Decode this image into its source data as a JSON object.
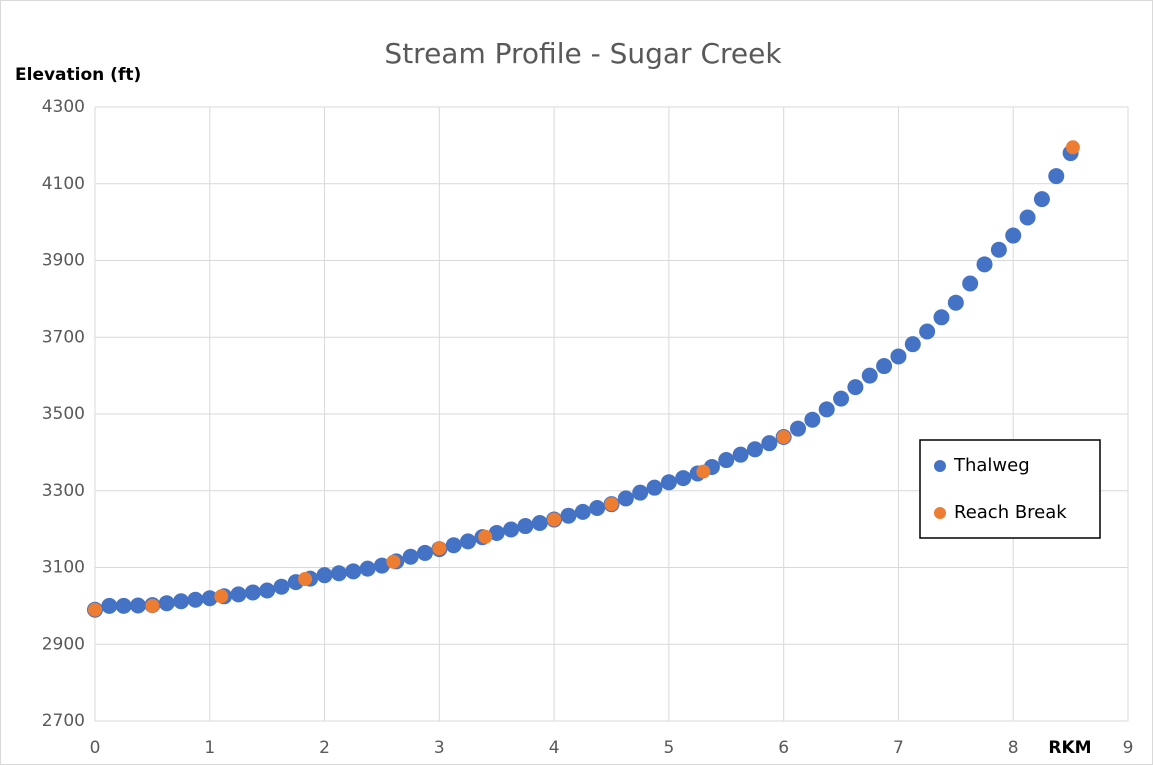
{
  "chart_data": {
    "type": "scatter",
    "title": "Stream Profile - Sugar Creek",
    "y_label": "Elevation  (ft)",
    "x_label": "RKM",
    "xlim": [
      0,
      9
    ],
    "xticks": [
      0,
      1,
      2,
      3,
      4,
      5,
      6,
      7,
      8,
      9
    ],
    "ylim": [
      2700,
      4300
    ],
    "yticks": [
      2700,
      2900,
      3100,
      3300,
      3500,
      3700,
      3900,
      4100,
      4300
    ],
    "grid": true,
    "legend": "right",
    "series": [
      {
        "name": "Thalweg",
        "color": "#4472c4",
        "x": [
          0,
          0.125,
          0.25,
          0.375,
          0.5,
          0.625,
          0.75,
          0.875,
          1,
          1.125,
          1.25,
          1.375,
          1.5,
          1.625,
          1.75,
          1.875,
          2,
          2.125,
          2.25,
          2.375,
          2.5,
          2.625,
          2.75,
          2.875,
          3,
          3.125,
          3.25,
          3.375,
          3.5,
          3.625,
          3.75,
          3.875,
          4,
          4.125,
          4.25,
          4.375,
          4.5,
          4.625,
          4.75,
          4.875,
          5,
          5.125,
          5.25,
          5.375,
          5.5,
          5.625,
          5.75,
          5.875,
          6,
          6.125,
          6.25,
          6.375,
          6.5,
          6.625,
          6.75,
          6.875,
          7,
          7.125,
          7.25,
          7.375,
          7.5,
          7.625,
          7.75,
          7.875,
          8,
          8.125,
          8.25,
          8.375,
          8.5
        ],
        "values": [
          2990,
          3000,
          3000,
          3001,
          3002,
          3007,
          3012,
          3016,
          3020,
          3025,
          3030,
          3035,
          3040,
          3050,
          3062,
          3071,
          3080,
          3085,
          3090,
          3097,
          3105,
          3116,
          3128,
          3138,
          3148,
          3158,
          3168,
          3179,
          3190,
          3199,
          3208,
          3216,
          3225,
          3235,
          3245,
          3255,
          3265,
          3280,
          3295,
          3308,
          3322,
          3333,
          3345,
          3362,
          3380,
          3394,
          3408,
          3424,
          3440,
          3462,
          3485,
          3512,
          3540,
          3570,
          3600,
          3625,
          3650,
          3682,
          3715,
          3752,
          3790,
          3840,
          3890,
          3928,
          3965,
          4012,
          4060,
          4120,
          4180
        ]
      },
      {
        "name": "Reach Break",
        "color": "#ed7d31",
        "x": [
          0,
          0.5,
          1.1,
          1.83,
          2.6,
          3.0,
          3.4,
          4.0,
          4.5,
          5.3,
          6.0,
          8.52
        ],
        "values": [
          2990,
          3000,
          3025,
          3070,
          3115,
          3150,
          3180,
          3225,
          3265,
          3350,
          3440,
          4195
        ]
      }
    ]
  }
}
